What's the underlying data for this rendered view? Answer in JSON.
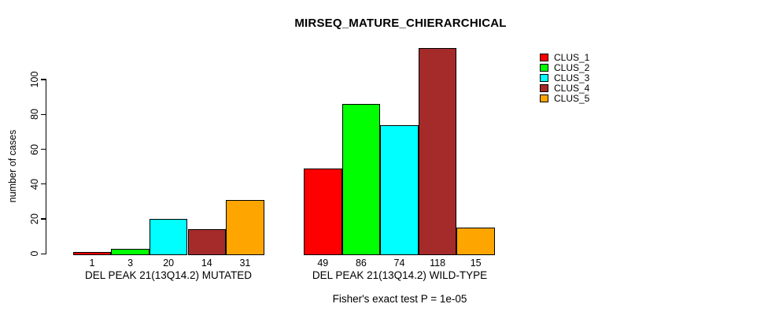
{
  "chart_data": {
    "type": "bar",
    "title": "MIRSEQ_MATURE_CHIERARCHICAL",
    "ylabel": "number of cases",
    "xlabel": "",
    "categories": [
      "DEL PEAK 21(13Q14.2) MUTATED",
      "DEL PEAK 21(13Q14.2) WILD-TYPE"
    ],
    "series": [
      {
        "name": "CLUS_1",
        "color": "#FF0000",
        "values": [
          1,
          49
        ]
      },
      {
        "name": "CLUS_2",
        "color": "#00FF00",
        "values": [
          3,
          86
        ]
      },
      {
        "name": "CLUS_3",
        "color": "#00FFFF",
        "values": [
          20,
          74
        ]
      },
      {
        "name": "CLUS_4",
        "color": "#A52A2A",
        "values": [
          14,
          118
        ]
      },
      {
        "name": "CLUS_5",
        "color": "#FFA500",
        "values": [
          31,
          15
        ]
      }
    ],
    "yticks": [
      0,
      20,
      40,
      60,
      80,
      100
    ],
    "ylim": [
      0,
      120
    ],
    "bar_value_labels_shown": true,
    "grid": false,
    "legend_position": "top-right",
    "legend_entries": [
      "CLUS_1",
      "CLUS_2",
      "CLUS_3",
      "CLUS_4",
      "CLUS_5"
    ],
    "footnote": "Fisher's exact test P = 1e-05",
    "background_color": "#FFFFFF",
    "axis_color": "#000000"
  }
}
